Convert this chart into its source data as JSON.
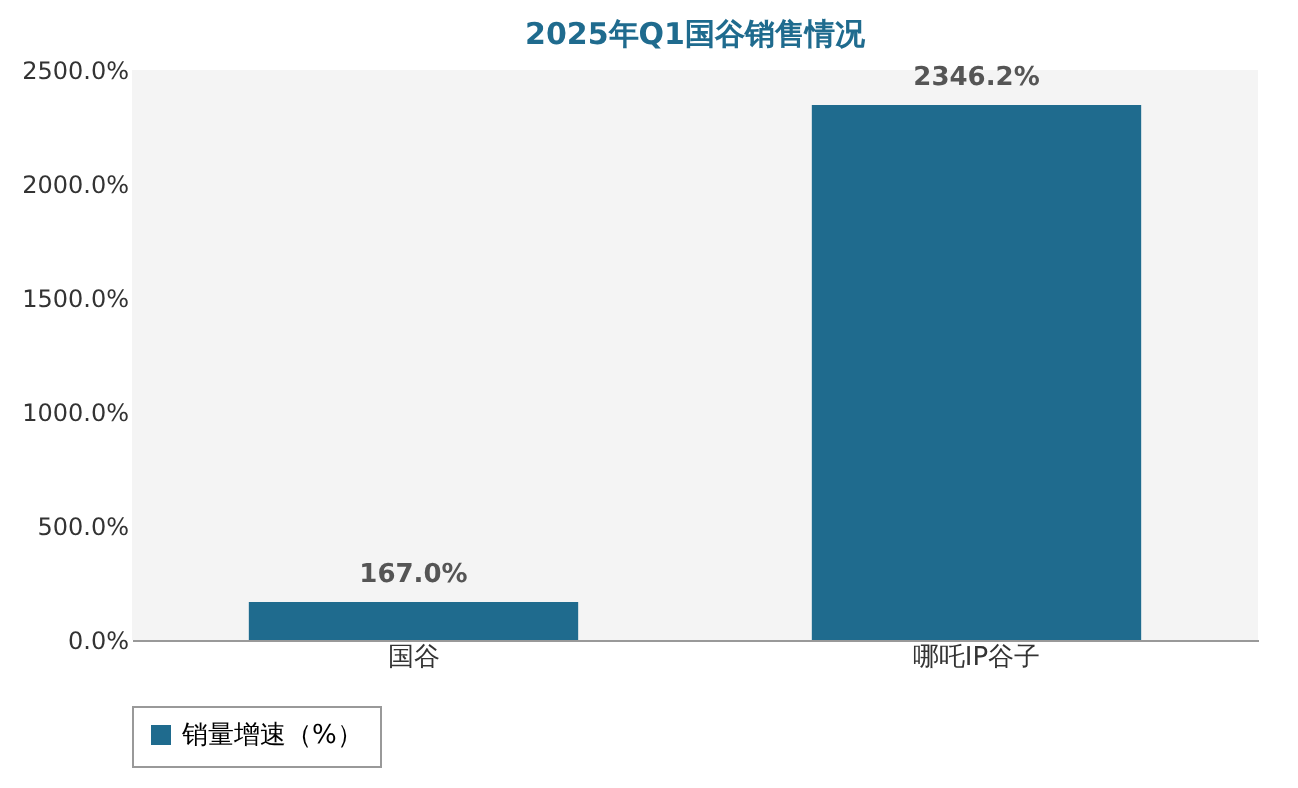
{
  "chart_data": {
    "type": "bar",
    "title": "2025年Q1国谷销售情况",
    "categories": [
      "国谷",
      "哪吒IP谷子"
    ],
    "series": [
      {
        "name": "销量增速（%）",
        "color": "#1f6b8e",
        "values": [
          167.0,
          2346.2
        ],
        "value_labels": [
          "167.0%",
          "2346.2%"
        ]
      }
    ],
    "ylim": [
      0,
      2500
    ],
    "yticks": [
      {
        "value": 0,
        "label": "0.0%"
      },
      {
        "value": 500,
        "label": "500.0%"
      },
      {
        "value": 1000,
        "label": "1000.0%"
      },
      {
        "value": 1500,
        "label": "1500.0%"
      },
      {
        "value": 2000,
        "label": "2000.0%"
      },
      {
        "value": 2500,
        "label": "2500.0%"
      }
    ],
    "grid": false,
    "legend": "bottom"
  }
}
